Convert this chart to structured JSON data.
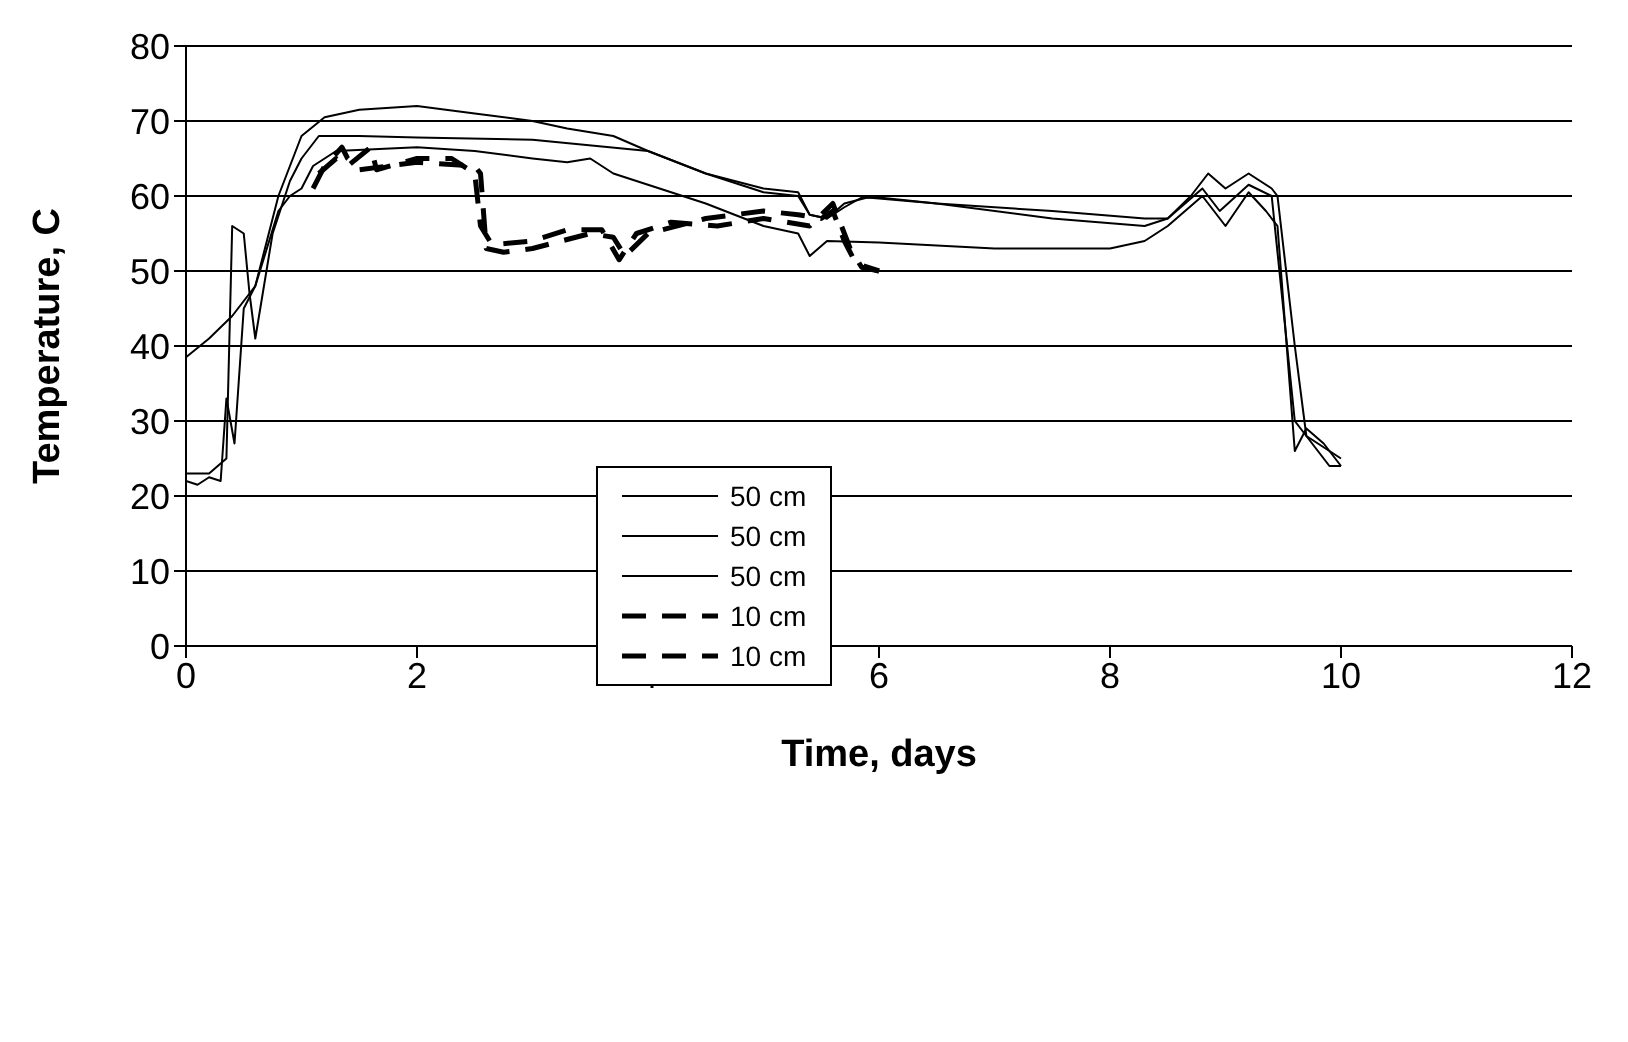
{
  "chart_data": {
    "type": "line",
    "xlabel": "Time, days",
    "ylabel": "Temperature, C",
    "xlim": [
      0,
      12
    ],
    "xticks": [
      0,
      2,
      4,
      6,
      8,
      10,
      12
    ],
    "ylim": [
      0,
      80
    ],
    "yticks": [
      0,
      10,
      20,
      30,
      40,
      50,
      60,
      70,
      80
    ],
    "grid": "y",
    "legend": "bottom",
    "marker": "none",
    "series": [
      {
        "name": "50 cm",
        "color": "#000000",
        "line_style": "solid",
        "x": [
          0,
          0.2,
          0.4,
          0.6,
          0.8,
          1.0,
          1.2,
          1.5,
          2.0,
          2.5,
          3.0,
          3.3,
          3.7,
          4.0,
          4.5,
          5.0,
          5.3,
          5.4,
          5.55,
          5.7,
          5.85,
          6.0,
          6.5,
          7.5,
          8.3,
          8.5,
          8.7,
          8.85,
          9.0,
          9.2,
          9.4,
          9.45,
          9.6,
          9.7,
          9.9,
          10.0
        ],
        "values": [
          38.5,
          41,
          44,
          48,
          60,
          68,
          70.5,
          71.5,
          72,
          71,
          70,
          69,
          68,
          66,
          63,
          61,
          60.5,
          57.5,
          57,
          58.5,
          59.8,
          59.8,
          59,
          58,
          57,
          57,
          60,
          63,
          61,
          63,
          61,
          60,
          40,
          28,
          26,
          25
        ]
      },
      {
        "name": "50 cm",
        "color": "#000000",
        "line_style": "solid",
        "x": [
          0,
          0.2,
          0.35,
          0.4,
          0.5,
          0.55,
          0.6,
          0.75,
          0.9,
          1.0,
          1.15,
          1.5,
          2.0,
          3.0,
          4.0,
          4.5,
          5.0,
          5.3,
          5.4,
          5.55,
          5.7,
          5.9,
          6.5,
          7.5,
          8.3,
          8.5,
          8.8,
          8.95,
          9.2,
          9.4,
          9.5,
          9.6,
          9.7,
          9.9,
          10.0
        ],
        "values": [
          23,
          23,
          25,
          56,
          55,
          47,
          41,
          55,
          62,
          65,
          68,
          68,
          67.8,
          67.5,
          66,
          63,
          60.5,
          60,
          57.5,
          57,
          59,
          59.8,
          59,
          57,
          56,
          57,
          61,
          58,
          61.5,
          60,
          45,
          30,
          28,
          24,
          24
        ]
      },
      {
        "name": "50 cm",
        "color": "#000000",
        "line_style": "solid",
        "x": [
          0,
          0.1,
          0.2,
          0.3,
          0.35,
          0.42,
          0.5,
          0.6,
          0.8,
          0.9,
          1.0,
          1.1,
          1.3,
          2.0,
          2.5,
          3.0,
          3.3,
          3.5,
          3.7,
          4.0,
          4.5,
          5.0,
          5.3,
          5.4,
          5.55,
          6.0,
          7.0,
          8.0,
          8.3,
          8.5,
          8.8,
          9.0,
          9.2,
          9.35,
          9.45,
          9.6,
          9.7,
          9.85,
          10.0
        ],
        "values": [
          22,
          21.5,
          22.5,
          22,
          33,
          27,
          45,
          48,
          58,
          60,
          61,
          64,
          66,
          66.5,
          66,
          65,
          64.5,
          65,
          63,
          61.5,
          59,
          56,
          55,
          52,
          54,
          53.8,
          53,
          53,
          54,
          56,
          60,
          56,
          60.5,
          58,
          56,
          26,
          29,
          27,
          24
        ]
      },
      {
        "name": "10 cm",
        "color": "#000000",
        "line_style": "dashed",
        "x": [
          1.1,
          1.2,
          1.35,
          1.4,
          1.5,
          2.0,
          2.5,
          2.55,
          2.6,
          2.75,
          3.0,
          3.5,
          3.7,
          3.8,
          4.0,
          4.5,
          5.0,
          5.3,
          5.5,
          5.6,
          5.7,
          5.8,
          6.0
        ],
        "values": [
          61,
          64,
          66.5,
          65,
          63.5,
          64.5,
          64,
          63,
          53,
          52.5,
          53,
          55,
          54.5,
          52,
          55,
          57,
          58,
          57.5,
          57,
          58,
          54,
          51,
          50
        ]
      },
      {
        "name": "10 cm",
        "color": "#000000",
        "line_style": "dashed",
        "x": [
          1.15,
          1.3,
          1.4,
          1.6,
          1.65,
          2.0,
          2.3,
          2.5,
          2.55,
          2.65,
          3.0,
          3.3,
          3.6,
          3.75,
          3.9,
          4.2,
          4.6,
          5.0,
          5.4,
          5.6,
          5.75,
          5.85,
          6.0
        ],
        "values": [
          63,
          65,
          64,
          66.5,
          63.5,
          65,
          65,
          63,
          56,
          53.5,
          54,
          55.5,
          55.5,
          51.5,
          55,
          56.5,
          56,
          57,
          56,
          59,
          53,
          50.5,
          50
        ]
      }
    ]
  }
}
